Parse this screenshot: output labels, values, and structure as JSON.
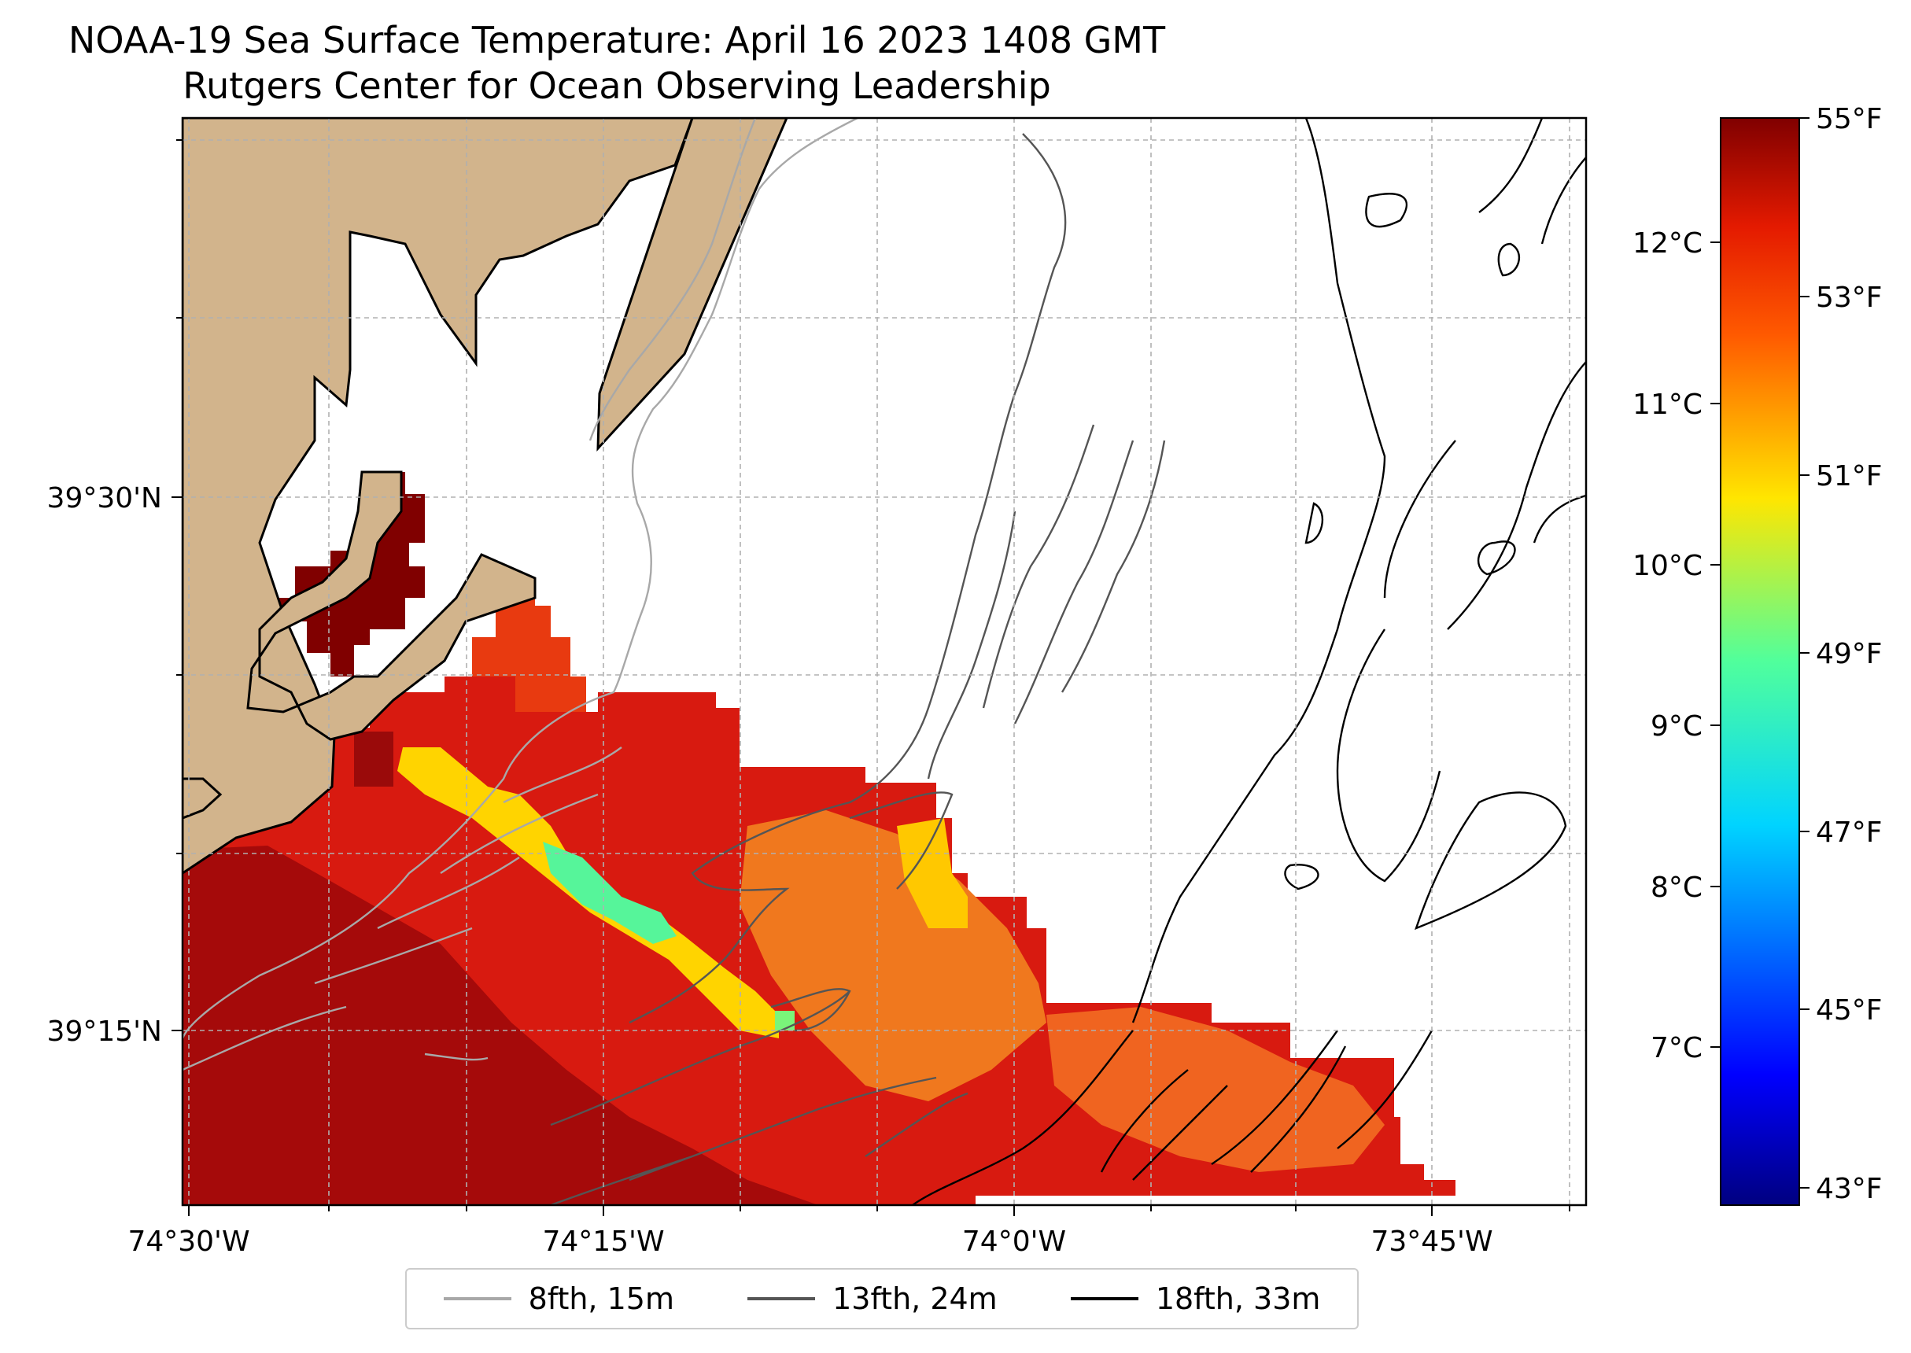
{
  "title": {
    "line1": "NOAA-19 Sea Surface Temperature: April 16 2023 1408 GMT",
    "line2": "Rutgers Center for Ocean Observing Leadership"
  },
  "axes": {
    "x_ticks": [
      "74°30'W",
      "74°15'W",
      "74°0'W",
      "73°45'W"
    ],
    "y_ticks": [
      "39°30'N",
      "39°15'N"
    ]
  },
  "colorbar": {
    "fahrenheit_ticks": [
      "55°F",
      "53°F",
      "51°F",
      "49°F",
      "47°F",
      "45°F",
      "43°F"
    ],
    "celsius_ticks": [
      "12°C",
      "11°C",
      "10°C",
      "9°C",
      "8°C",
      "7°C"
    ],
    "colors": [
      "#800000",
      "#e00000",
      "#ff4000",
      "#ff9000",
      "#ffe000",
      "#c0ff30",
      "#40ff90",
      "#00e0ff",
      "#0080ff",
      "#0010ff",
      "#000090"
    ]
  },
  "legend": [
    {
      "label": "8fth, 15m",
      "color": "#a8a8a8"
    },
    {
      "label": "13fth, 24m",
      "color": "#555555"
    },
    {
      "label": "18fth, 33m",
      "color": "#000000"
    }
  ],
  "colors": {
    "land": "#d2b48c",
    "grid": "#b0b0b0"
  }
}
